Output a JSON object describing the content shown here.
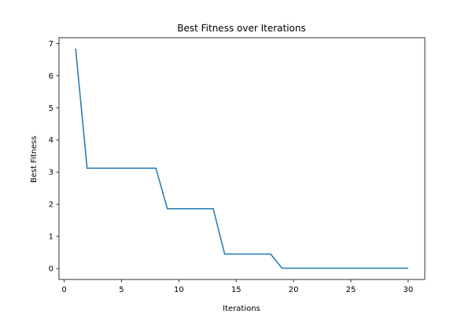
{
  "chart_data": {
    "type": "line",
    "title": "Best Fitness over Iterations",
    "xlabel": "Iterations",
    "ylabel": "Best Fitness",
    "xlim": [
      -0.45,
      31.45
    ],
    "ylim": [
      -0.34,
      7.18
    ],
    "xticks": [
      0,
      5,
      10,
      15,
      20,
      25,
      30
    ],
    "yticks": [
      0,
      1,
      2,
      3,
      4,
      5,
      6,
      7
    ],
    "grid": false,
    "series": [
      {
        "color": "#1f77b4",
        "x": [
          1,
          2,
          3,
          4,
          5,
          6,
          7,
          8,
          9,
          10,
          11,
          12,
          13,
          14,
          15,
          16,
          17,
          18,
          19,
          20,
          21,
          22,
          23,
          24,
          25,
          26,
          27,
          28,
          29,
          30
        ],
        "y": [
          6.84,
          3.12,
          3.12,
          3.12,
          3.12,
          3.12,
          3.12,
          3.12,
          1.86,
          1.86,
          1.86,
          1.86,
          1.86,
          0.45,
          0.45,
          0.45,
          0.45,
          0.45,
          0.01,
          0.01,
          0.01,
          0.01,
          0.01,
          0.01,
          0.01,
          0.01,
          0.01,
          0.01,
          0.01,
          0.01
        ]
      }
    ]
  }
}
